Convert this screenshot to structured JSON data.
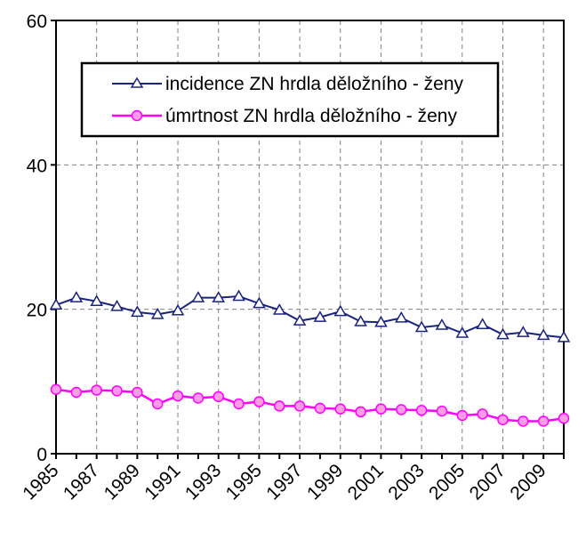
{
  "chart_data": {
    "type": "line",
    "title": "",
    "xlabel": "",
    "ylabel": "",
    "x": [
      1985,
      1986,
      1987,
      1988,
      1989,
      1990,
      1991,
      1992,
      1993,
      1994,
      1995,
      1996,
      1997,
      1998,
      1999,
      2000,
      2001,
      2002,
      2003,
      2004,
      2005,
      2006,
      2007,
      2008,
      2009,
      2010
    ],
    "x_tick_labels": [
      "1985",
      "1987",
      "1989",
      "1991",
      "1993",
      "1995",
      "1997",
      "1999",
      "2001",
      "2003",
      "2005",
      "2007",
      "2009"
    ],
    "ylim": [
      0,
      60
    ],
    "y_ticks": [
      "0",
      "20",
      "40",
      "60"
    ],
    "grid": true,
    "legend_position": "top",
    "series": [
      {
        "name": "incidence ZN hrdla děložního - ženy",
        "color": "#1a237e",
        "marker": "triangle",
        "values": [
          20.6,
          21.6,
          21.1,
          20.4,
          19.6,
          19.3,
          19.8,
          21.6,
          21.6,
          21.8,
          20.8,
          19.9,
          18.4,
          18.9,
          19.7,
          18.3,
          18.2,
          18.8,
          17.5,
          17.8,
          16.7,
          17.9,
          16.5,
          16.8,
          16.4,
          16.1
        ]
      },
      {
        "name": "úmrtnost ZN hrdla děložního - ženy",
        "color": "#ff00ff",
        "marker": "circle",
        "values": [
          8.9,
          8.5,
          8.8,
          8.7,
          8.5,
          6.9,
          8.0,
          7.7,
          7.9,
          6.9,
          7.2,
          6.6,
          6.6,
          6.3,
          6.2,
          5.8,
          6.2,
          6.1,
          6.0,
          5.9,
          5.3,
          5.5,
          4.7,
          4.5,
          4.5,
          4.9
        ]
      }
    ]
  }
}
